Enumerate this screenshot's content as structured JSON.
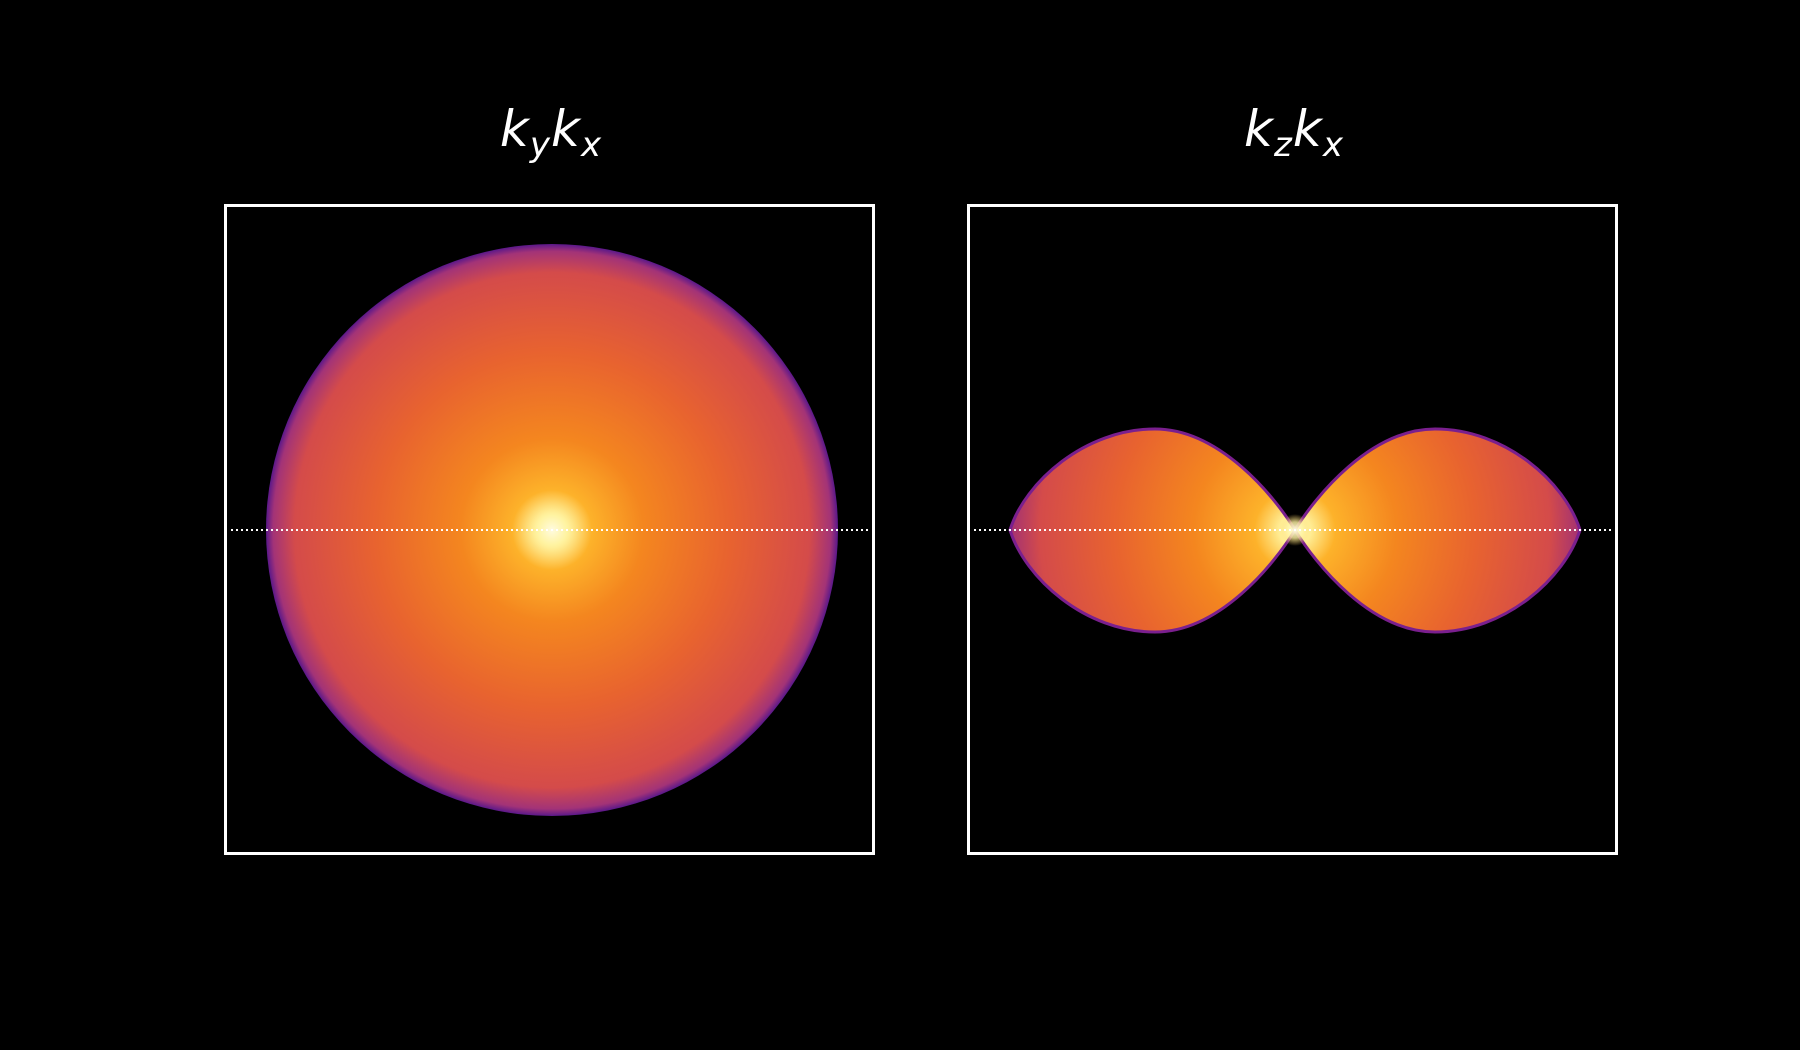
{
  "panels": [
    {
      "title": "k_y k_x",
      "title_main_1": "k",
      "title_sub_1": "y",
      "title_main_2": "k",
      "title_sub_2": "x",
      "shape": "disk"
    },
    {
      "title": "k_z k_x",
      "title_main_1": "k",
      "title_sub_1": "z",
      "title_main_2": "k",
      "title_sub_2": "x",
      "shape": "two-lobes"
    }
  ],
  "colors": {
    "background": "#000000",
    "frame": "#ffffff",
    "center_glow": "#fffbd0",
    "inner": "#fca42c",
    "mid": "#e8632f",
    "outer": "#c8456a",
    "edge": "#6a1a9a",
    "guide_line": "#ffffff"
  }
}
